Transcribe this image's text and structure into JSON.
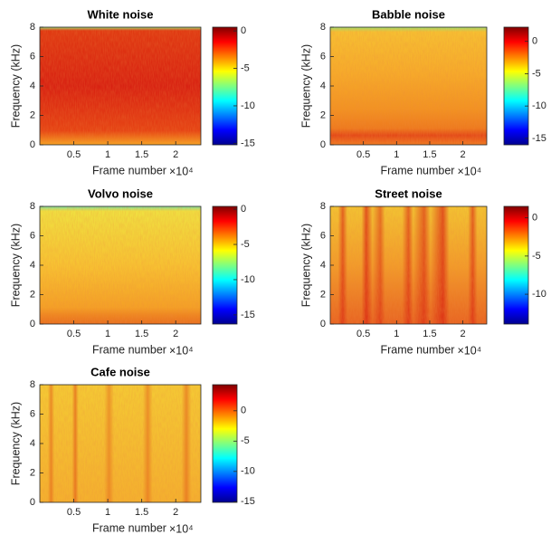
{
  "chart_data": [
    {
      "type": "spectrogram",
      "title": "White noise",
      "xlabel": "Frame number",
      "x_exponent_label": "×10⁴",
      "ylabel": "Frequency (kHz)",
      "xlim": [
        0,
        2.37
      ],
      "xticks": [
        0.5,
        1,
        1.5,
        2
      ],
      "ylim": [
        0,
        8
      ],
      "yticks": [
        0,
        2,
        4,
        6,
        8
      ],
      "colorbar": {
        "colormap": "jet",
        "clim": [
          -15.2,
          0.5
        ],
        "ticks": [
          0,
          -5,
          -10,
          -15
        ]
      }
    },
    {
      "type": "spectrogram",
      "title": "Babble noise",
      "xlabel": "Frame number",
      "x_exponent_label": "×10⁴",
      "ylabel": "Frequency (kHz)",
      "xlim": [
        0,
        2.36
      ],
      "xticks": [
        0.5,
        1,
        1.5,
        2
      ],
      "ylim": [
        0,
        8
      ],
      "yticks": [
        0,
        2,
        4,
        6,
        8
      ],
      "colorbar": {
        "colormap": "jet",
        "clim": [
          -16,
          2.2
        ],
        "ticks": [
          0,
          -5,
          -10,
          -15
        ]
      }
    },
    {
      "type": "spectrogram",
      "title": "Volvo noise",
      "xlabel": "Frame number",
      "x_exponent_label": "×10⁴",
      "ylabel": "Frequency (kHz)",
      "xlim": [
        0,
        2.37
      ],
      "xticks": [
        0.5,
        1,
        1.5,
        2
      ],
      "ylim": [
        0,
        8
      ],
      "yticks": [
        0,
        2,
        4,
        6,
        8
      ],
      "colorbar": {
        "colormap": "jet",
        "clim": [
          -16.3,
          0.4
        ],
        "ticks": [
          0,
          -5,
          -10,
          -15
        ]
      }
    },
    {
      "type": "spectrogram",
      "title": "Street noise",
      "xlabel": "Frame number",
      "x_exponent_label": "×10⁴",
      "ylabel": "Frequency (kHz)",
      "xlim": [
        0,
        2.36
      ],
      "xticks": [
        0.5,
        1,
        1.5,
        2
      ],
      "ylim": [
        0,
        8
      ],
      "yticks": [
        0,
        2,
        4,
        6,
        8
      ],
      "colorbar": {
        "colormap": "jet",
        "clim": [
          -13.9,
          1.5
        ],
        "ticks": [
          0,
          -5,
          -10
        ]
      }
    },
    {
      "type": "spectrogram",
      "title": "Cafe noise",
      "xlabel": "Frame number",
      "x_exponent_label": "×10⁴",
      "ylabel": "Frequency (kHz)",
      "xlim": [
        0,
        2.37
      ],
      "xticks": [
        0.5,
        1,
        1.5,
        2
      ],
      "ylim": [
        0,
        8
      ],
      "yticks": [
        0,
        2,
        4,
        6,
        8
      ],
      "colorbar": {
        "colormap": "jet",
        "clim": [
          -15.1,
          4.3
        ],
        "ticks": [
          0,
          -5,
          -10,
          -15
        ]
      }
    }
  ]
}
